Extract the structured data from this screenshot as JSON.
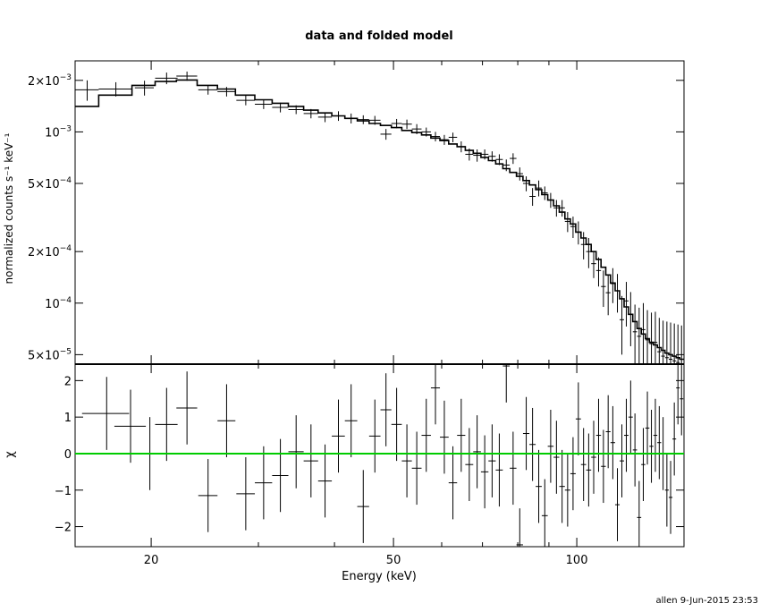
{
  "chart_data": [
    {
      "type": "line",
      "title": "data and folded model",
      "ylabel": "normalized counts s⁻¹ keV⁻¹",
      "xlabel": "",
      "xscale": "log",
      "yscale": "log",
      "xlim": [
        15,
        150
      ],
      "ylim": [
        4.4e-05,
        0.0026
      ],
      "x_ticks": [],
      "y_ticks": [
        {
          "v": 0.002,
          "m": "2×10",
          "e": "−3"
        },
        {
          "v": 0.001,
          "m": "10",
          "e": "−3"
        },
        {
          "v": 0.0005,
          "m": "5×10",
          "e": "−4"
        },
        {
          "v": 0.0002,
          "m": "2×10",
          "e": "−4"
        },
        {
          "v": 0.0001,
          "m": "10",
          "e": "−4"
        },
        {
          "v": 5e-05,
          "m": "5×10",
          "e": "−5"
        }
      ],
      "series": [
        {
          "kind": "data",
          "x": [
            15.7,
            17.5,
            19.5,
            21.2,
            22.9,
            24.8,
            26.6,
            28.6,
            30.6,
            32.6,
            34.6,
            36.6,
            38.6,
            40.6,
            42.6,
            44.6,
            46.6,
            48.6,
            50.6,
            52.6,
            54.6,
            56.6,
            58.6,
            60.6,
            62.6,
            64.6,
            66.6,
            68.6,
            70.6,
            72.6,
            74.6,
            76.6,
            78.6,
            80.6,
            82.6,
            84.6,
            86.6,
            88.6,
            90.6,
            92.6,
            94.6,
            96.6,
            98.6,
            100.6,
            102.6,
            104.6,
            106.6,
            108.6,
            110.6,
            112.6,
            114.6,
            116.6,
            118.6,
            120.6,
            122.6,
            124.6,
            126.6,
            128.6,
            130.6,
            132.6,
            134.6,
            136.6,
            138.6,
            140.6,
            142.6,
            144.6,
            146.6,
            148.6
          ],
          "xerr": [
            0.7,
            1.1,
            0.7,
            0.9,
            0.9,
            0.9,
            0.9,
            1.0,
            1.0,
            1.0,
            1.0,
            1.0,
            1.0,
            1.0,
            1.0,
            1.0,
            1.0,
            1.0,
            1.0,
            1.0,
            1.0,
            1.0,
            1.0,
            1.0,
            1.0,
            1.0,
            1.0,
            1.0,
            1.0,
            1.0,
            1.0,
            1.0,
            1.0,
            1.0,
            1.0,
            1.0,
            1.0,
            1.0,
            1.0,
            1.0,
            1.0,
            1.0,
            1.0,
            1.0,
            1.0,
            1.0,
            1.0,
            1.0,
            1.0,
            1.0,
            1.0,
            1.0,
            1.0,
            1.0,
            1.0,
            1.0,
            1.0,
            1.0,
            1.0,
            1.0,
            1.0,
            1.0,
            1.0,
            1.0,
            1.0,
            1.0,
            1.0,
            1.0
          ],
          "y": [
            0.00176,
            0.00178,
            0.00181,
            0.00206,
            0.00212,
            0.00176,
            0.00172,
            0.00153,
            0.00145,
            0.00139,
            0.00135,
            0.00128,
            0.00122,
            0.00124,
            0.0012,
            0.00118,
            0.00117,
            0.00097,
            0.00112,
            0.00111,
            0.00104,
            0.001,
            0.00094,
            0.0009,
            0.00093,
            0.00082,
            0.00074,
            0.00073,
            0.00074,
            0.00072,
            0.00069,
            0.00064,
            0.0007,
            0.00057,
            0.0005,
            0.00042,
            0.00047,
            0.00044,
            0.0004,
            0.00036,
            0.00036,
            0.0003,
            0.00028,
            0.00026,
            0.00022,
            0.0002,
            0.00017,
            0.000155,
            0.000125,
            0.000115,
            0.00013,
            0.000118,
            8e-05,
            0.000103,
            8.6e-05,
            6.8e-05,
            6.4e-05,
            7e-05,
            6.1e-05,
            5.8e-05,
            5.9e-05,
            5.2e-05,
            4.9e-05,
            4.8e-05,
            4.7e-05,
            4.6e-05,
            4.5e-05,
            4.4e-05
          ],
          "yerr_hi": [
            0.00024,
            0.00017,
            0.00018,
            0.00016,
            0.00013,
            0.00011,
            0.00011,
            0.0001,
            9e-05,
            9e-05,
            8e-05,
            8e-05,
            8e-05,
            8e-05,
            8e-05,
            7e-05,
            7e-05,
            7e-05,
            7e-05,
            7e-05,
            7e-05,
            6e-05,
            6e-05,
            6e-05,
            6e-05,
            6e-05,
            6e-05,
            6e-05,
            5e-05,
            5e-05,
            5e-05,
            5e-05,
            5e-05,
            5e-05,
            5e-05,
            5e-05,
            5e-05,
            4e-05,
            4e-05,
            4e-05,
            4e-05,
            4e-05,
            4e-05,
            4e-05,
            4e-05,
            4e-05,
            3e-05,
            3e-05,
            3e-05,
            3e-05,
            3e-05,
            3e-05,
            3e-05,
            3e-05,
            3e-05,
            3e-05,
            3e-05,
            3e-05,
            3e-05,
            3e-05,
            3e-05,
            3e-05,
            3e-05,
            3e-05,
            3e-05,
            3e-05,
            3e-05,
            3e-05
          ],
          "yerr_lo": [
            0.00024,
            0.00017,
            0.00018,
            0.00016,
            0.00013,
            0.00011,
            0.00011,
            0.0001,
            9e-05,
            9e-05,
            8e-05,
            8e-05,
            8e-05,
            8e-05,
            8e-05,
            7e-05,
            7e-05,
            7e-05,
            7e-05,
            7e-05,
            7e-05,
            6e-05,
            6e-05,
            6e-05,
            6e-05,
            6e-05,
            6e-05,
            6e-05,
            5e-05,
            5e-05,
            5e-05,
            5e-05,
            5e-05,
            5e-05,
            5e-05,
            5e-05,
            5e-05,
            4e-05,
            4e-05,
            4e-05,
            4e-05,
            4e-05,
            4e-05,
            4e-05,
            4e-05,
            4e-05,
            3e-05,
            3e-05,
            3e-05,
            3e-05,
            3e-05,
            3e-05,
            3e-05,
            3e-05,
            3e-05,
            3e-05,
            3e-05,
            3e-05,
            3e-05,
            3e-05,
            3e-05,
            3e-05,
            3e-05,
            3e-05,
            3e-05,
            3e-05,
            3e-05,
            3e-05
          ],
          "color": "#000000"
        },
        {
          "kind": "step",
          "edges": [
            15,
            16.4,
            18.6,
            20.3,
            22.0,
            23.8,
            25.7,
            27.5,
            29.6,
            31.6,
            33.6,
            35.6,
            37.6,
            39.6,
            41.6,
            43.6,
            45.6,
            47.6,
            49.6,
            51.6,
            53.6,
            55.6,
            57.6,
            59.6,
            61.6,
            63.6,
            65.6,
            67.6,
            69.6,
            71.6,
            73.6,
            75.6,
            77.6,
            79.6,
            81.6,
            83.6,
            85.6,
            87.6,
            89.6,
            91.6,
            93.6,
            95.6,
            97.6,
            99.6,
            101.6,
            103.6,
            105.6,
            107.6,
            109.6,
            111.6,
            113.6,
            115.6,
            117.6,
            119.6,
            121.6,
            123.6,
            125.6,
            127.6,
            129.6,
            131.6,
            133.6,
            135.6,
            137.6,
            139.6,
            141.6,
            143.6,
            145.6,
            147.6,
            150
          ],
          "values": [
            0.00141,
            0.00164,
            0.00187,
            0.00197,
            0.00201,
            0.00187,
            0.00178,
            0.00164,
            0.00154,
            0.00147,
            0.00141,
            0.00134,
            0.00129,
            0.00124,
            0.0012,
            0.00116,
            0.00112,
            0.00109,
            0.00106,
            0.00102,
            0.00099,
            0.00096,
            0.00092,
            0.00089,
            0.00085,
            0.00082,
            0.00078,
            0.00075,
            0.00071,
            0.00068,
            0.00065,
            0.00061,
            0.00058,
            0.00055,
            0.00052,
            0.00049,
            0.00046,
            0.00043,
            0.0004,
            0.00037,
            0.00034,
            0.00031,
            0.00029,
            0.00026,
            0.00024,
            0.00022,
            0.0002,
            0.00018,
            0.000162,
            0.000146,
            0.000131,
            0.000118,
            0.000106,
            9.5e-05,
            8.6e-05,
            7.8e-05,
            7.1e-05,
            6.6e-05,
            6.2e-05,
            5.9e-05,
            5.7e-05,
            5.5e-05,
            5.3e-05,
            5.1e-05,
            5e-05,
            4.9e-05,
            4.8e-05,
            4.7e-05
          ],
          "color": "#000000"
        }
      ]
    },
    {
      "type": "line",
      "title": "",
      "ylabel": "χ",
      "xlabel": "Energy (keV)",
      "xscale": "log",
      "xlim": [
        15,
        150
      ],
      "ylim": [
        -2.55,
        2.45
      ],
      "x_ticks": [
        {
          "v": 20,
          "label": "20"
        },
        {
          "v": 50,
          "label": "50"
        },
        {
          "v": 100,
          "label": "100"
        }
      ],
      "y_ticks": [
        {
          "v": 2,
          "label": "2"
        },
        {
          "v": 1,
          "label": "1"
        },
        {
          "v": 0,
          "label": "0"
        },
        {
          "v": -1,
          "label": "−1"
        },
        {
          "v": -2,
          "label": "−2"
        }
      ],
      "series": [
        {
          "kind": "data",
          "x": [
            16.9,
            18.5,
            19.9,
            21.2,
            22.9,
            24.8,
            26.6,
            28.6,
            30.6,
            32.6,
            34.6,
            36.6,
            38.6,
            40.6,
            42.6,
            44.6,
            46.6,
            48.6,
            50.6,
            52.6,
            54.6,
            56.6,
            58.6,
            60.6,
            62.6,
            64.6,
            66.6,
            68.6,
            70.6,
            72.6,
            74.6,
            76.6,
            78.6,
            80.6,
            82.6,
            84.6,
            86.6,
            88.6,
            90.6,
            92.6,
            94.6,
            96.6,
            98.6,
            100.6,
            102.6,
            104.6,
            106.6,
            108.6,
            110.6,
            112.6,
            114.6,
            116.6,
            118.6,
            120.6,
            122.6,
            124.6,
            126.6,
            128.6,
            130.6,
            132.6,
            134.6,
            136.6,
            138.6,
            140.6,
            142.6,
            144.6,
            146.6,
            148.6
          ],
          "xerr": [
            1.5,
            1.1,
            0.9,
            0.9,
            0.9,
            0.9,
            0.9,
            1.0,
            1.0,
            1.0,
            1.0,
            1.0,
            1.0,
            1.0,
            1.0,
            1.0,
            1.0,
            1.0,
            1.0,
            1.0,
            1.0,
            1.0,
            1.0,
            1.0,
            1.0,
            1.0,
            1.0,
            1.0,
            1.0,
            1.0,
            1.0,
            1.0,
            1.0,
            1.0,
            1.0,
            1.0,
            1.0,
            1.0,
            1.0,
            1.0,
            1.0,
            1.0,
            1.0,
            1.0,
            1.0,
            1.0,
            1.0,
            1.0,
            1.0,
            1.0,
            1.0,
            1.0,
            1.0,
            1.0,
            1.0,
            1.0,
            1.0,
            1.0,
            1.0,
            1.0,
            1.0,
            1.0,
            1.0,
            1.0,
            1.0,
            1.0,
            1.0,
            1.0
          ],
          "y": [
            1.1,
            0.75,
            0.0,
            0.8,
            1.25,
            -1.15,
            0.9,
            -1.1,
            -0.8,
            -0.6,
            0.05,
            -0.2,
            -0.75,
            0.48,
            0.9,
            -1.45,
            0.48,
            1.2,
            0.8,
            -0.2,
            -0.4,
            0.5,
            1.8,
            0.45,
            -0.8,
            0.5,
            -0.3,
            0.05,
            -0.5,
            -0.2,
            -0.45,
            2.4,
            -0.4,
            -2.5,
            0.55,
            0.25,
            -0.9,
            -1.7,
            0.2,
            -0.1,
            -0.9,
            -1.0,
            -0.55,
            0.95,
            -0.3,
            -0.45,
            -0.1,
            0.5,
            -0.35,
            0.6,
            0.3,
            -1.4,
            -0.2,
            0.5,
            1.0,
            0.1,
            -1.75,
            -0.3,
            0.7,
            0.2,
            0.5,
            0.3,
            0.0,
            -1.0,
            -1.2,
            0.4,
            1.8,
            1.5
          ],
          "yerr_hi": [
            1.0,
            1.0,
            1.0,
            1.0,
            1.0,
            1.0,
            1.0,
            1.0,
            1.0,
            1.0,
            1.0,
            1.0,
            1.0,
            1.0,
            1.0,
            1.0,
            1.0,
            1.0,
            1.0,
            1.0,
            1.0,
            1.0,
            1.0,
            1.0,
            1.0,
            1.0,
            1.0,
            1.0,
            1.0,
            1.0,
            1.0,
            1.0,
            1.0,
            1.0,
            1.0,
            1.0,
            1.0,
            1.0,
            1.0,
            1.0,
            1.0,
            1.0,
            1.0,
            1.0,
            1.0,
            1.0,
            1.0,
            1.0,
            1.0,
            1.0,
            1.0,
            1.0,
            1.0,
            1.0,
            1.0,
            1.0,
            1.0,
            1.0,
            1.0,
            1.0,
            1.0,
            1.0,
            1.0,
            1.0,
            1.0,
            1.0,
            1.0,
            1.0
          ],
          "yerr_lo": [
            1.0,
            1.0,
            1.0,
            1.0,
            1.0,
            1.0,
            1.0,
            1.0,
            1.0,
            1.0,
            1.0,
            1.0,
            1.0,
            1.0,
            1.0,
            1.0,
            1.0,
            1.0,
            1.0,
            1.0,
            1.0,
            1.0,
            1.0,
            1.0,
            1.0,
            1.0,
            1.0,
            1.0,
            1.0,
            1.0,
            1.0,
            1.0,
            1.0,
            1.0,
            1.0,
            1.0,
            1.0,
            1.0,
            1.0,
            1.0,
            1.0,
            1.0,
            1.0,
            1.0,
            1.0,
            1.0,
            1.0,
            1.0,
            1.0,
            1.0,
            1.0,
            1.0,
            1.0,
            1.0,
            1.0,
            1.0,
            1.0,
            1.0,
            1.0,
            1.0,
            1.0,
            1.0,
            1.0,
            1.0,
            1.0,
            1.0,
            1.0,
            1.0
          ],
          "color": "#000000"
        },
        {
          "kind": "hline",
          "value": 0,
          "color": "#00cc00"
        }
      ]
    }
  ],
  "footer": {
    "stamp": "allen  9-Jun-2015 23:53"
  }
}
